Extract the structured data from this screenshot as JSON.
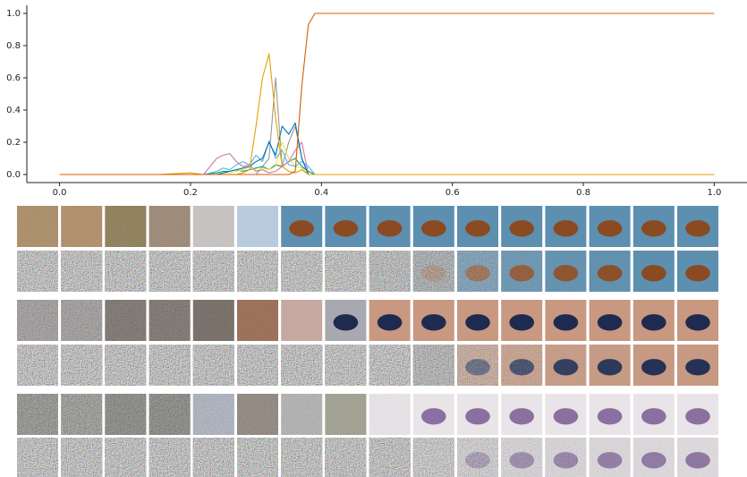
{
  "chart_data": {
    "type": "line",
    "x": [
      0,
      0.1,
      0.15,
      0.2,
      0.22,
      0.24,
      0.25,
      0.26,
      0.27,
      0.28,
      0.29,
      0.3,
      0.31,
      0.32,
      0.33,
      0.34,
      0.35,
      0.36,
      0.37,
      0.38,
      0.39,
      0.4,
      0.6,
      0.8,
      1
    ],
    "series": [
      {
        "color": "#999999",
        "values": [
          0,
          0,
          0,
          0,
          0,
          0,
          0,
          0,
          0,
          0,
          0,
          0,
          0.05,
          0.1,
          0.6,
          0.05,
          0.2,
          0.3,
          0.1,
          0,
          0,
          0,
          0,
          0,
          0
        ]
      },
      {
        "color": "#009e73",
        "values": [
          0,
          0,
          0,
          0,
          0,
          0.01,
          0.02,
          0.02,
          0.03,
          0.02,
          0.03,
          0.04,
          0.05,
          0.03,
          0.06,
          0.05,
          0.08,
          0.1,
          0.05,
          0.02,
          0,
          0,
          0,
          0,
          0
        ]
      },
      {
        "color": "#f0e442",
        "values": [
          0,
          0,
          0,
          0,
          0,
          0,
          0.01,
          0.01,
          0.02,
          0.03,
          0.05,
          0.02,
          0.04,
          0.03,
          0.05,
          0.2,
          0.1,
          0.05,
          0.04,
          0,
          0,
          0,
          0,
          0,
          0
        ]
      },
      {
        "color": "#cc79a7",
        "values": [
          0,
          0,
          0,
          0,
          0,
          0.1,
          0.12,
          0.13,
          0.08,
          0.05,
          0.06,
          0.02,
          0.03,
          0.01,
          0.02,
          0.05,
          0.08,
          0.15,
          0.2,
          0,
          0,
          0,
          0,
          0,
          0
        ]
      },
      {
        "color": "#56b4e9",
        "values": [
          0,
          0,
          0,
          0,
          0,
          0.02,
          0.04,
          0.03,
          0.06,
          0.08,
          0.06,
          0.12,
          0.08,
          0.21,
          0.1,
          0.15,
          0.06,
          0.05,
          0.08,
          0.05,
          0,
          0,
          0,
          0,
          0
        ]
      },
      {
        "color": "#0072b2",
        "values": [
          0,
          0,
          0,
          0,
          0,
          0,
          0.01,
          0.02,
          0.03,
          0.04,
          0.05,
          0.08,
          0.1,
          0.2,
          0.12,
          0.3,
          0.25,
          0.32,
          0.1,
          0,
          0,
          0,
          0,
          0,
          0
        ]
      },
      {
        "color": "#e69f00",
        "values": [
          0,
          0,
          0,
          0.01,
          0,
          0,
          0,
          0,
          0,
          0.01,
          0.03,
          0.3,
          0.6,
          0.75,
          0.35,
          0.05,
          0.02,
          0.01,
          0.03,
          0,
          0,
          0,
          0,
          0,
          0
        ]
      },
      {
        "color": "#d55e00",
        "values": [
          0,
          0,
          0,
          0,
          0,
          0,
          0,
          0,
          0,
          0,
          0,
          0,
          0,
          0,
          0,
          0,
          0,
          0.02,
          0.55,
          0.93,
          1,
          1,
          1,
          1,
          1
        ]
      }
    ],
    "xlim": [
      -0.05,
      1.05
    ],
    "ylim": [
      -0.05,
      1.05
    ],
    "xticks": [
      {
        "value": 0,
        "label": "0.0"
      },
      0.2,
      0.4,
      0.6,
      0.8,
      {
        "value": 1,
        "label": "1.0"
      }
    ],
    "yticks": [
      {
        "value": 0,
        "label": "0.0"
      },
      0.2,
      0.4,
      0.6,
      0.8,
      {
        "value": 1,
        "label": "1.0"
      }
    ],
    "grid": false
  }
}
